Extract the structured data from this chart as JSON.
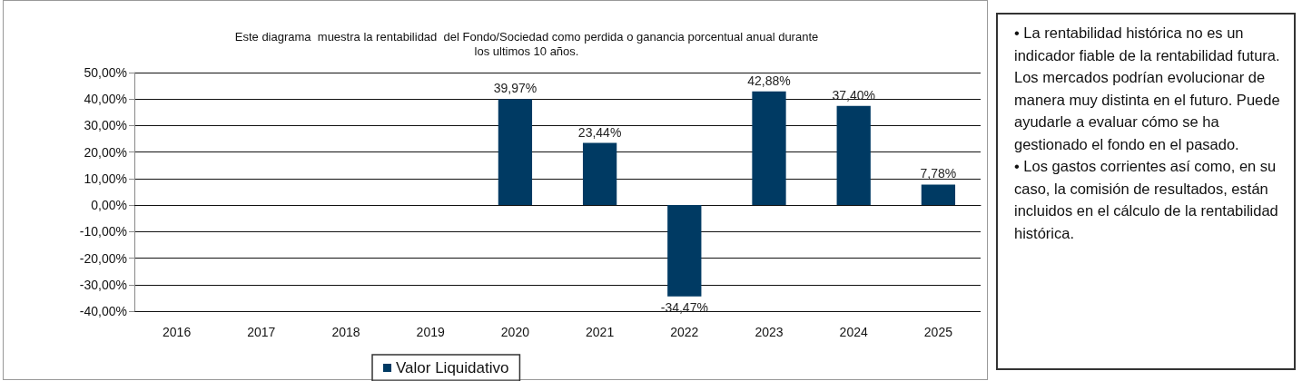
{
  "chart_data": {
    "type": "bar",
    "title": "Este diagrama  muestra la rentabilidad  del Fondo/Sociedad como perdida o ganancia porcentual anual durante\nlos ultimos 10 años.",
    "categories": [
      "2016",
      "2017",
      "2018",
      "2019",
      "2020",
      "2021",
      "2022",
      "2023",
      "2024",
      "2025"
    ],
    "series": [
      {
        "name": "Valor Liquidativo",
        "color": "#003a63",
        "values": [
          null,
          null,
          null,
          null,
          39.97,
          23.44,
          -34.47,
          42.88,
          37.4,
          7.78
        ],
        "value_labels": [
          null,
          null,
          null,
          null,
          "39,97%",
          "23,44%",
          "-34,47%",
          "42,88%",
          "37,40%",
          "7,78%"
        ]
      }
    ],
    "ylim": [
      -40,
      50
    ],
    "yticks": [
      {
        "value": -40,
        "label": "-40,00%"
      },
      {
        "value": -30,
        "label": "-30,00%"
      },
      {
        "value": -20,
        "label": "-20,00%"
      },
      {
        "value": -10,
        "label": "-10,00%"
      },
      {
        "value": 0,
        "label": "0,00%"
      },
      {
        "value": 10,
        "label": "10,00%"
      },
      {
        "value": 20,
        "label": "20,00%"
      },
      {
        "value": 30,
        "label": "30,00%"
      },
      {
        "value": 40,
        "label": "40,00%"
      },
      {
        "value": 50,
        "label": "50,00%"
      }
    ],
    "grid": "y",
    "legend": "bottom",
    "annotations": [
      "• La rentabilidad  histórica no es un indicador  fiable de la rentabilidad  futura. Los mercados  podrían evolucionar de manera muy distinta en el futuro. Puede ayudarle a evaluar cómo se ha gestionado el fondo en el pasado.",
      "• Los gastos corrientes así como, en su caso, la comisión  de resultados, están incluidos en el cálculo de la rentabilidad  histórica."
    ]
  }
}
